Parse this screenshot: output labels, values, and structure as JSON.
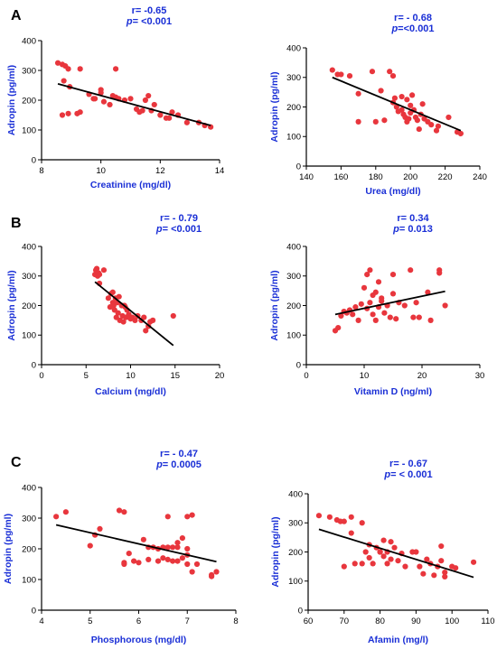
{
  "panel_labels": [
    "A",
    "B",
    "C"
  ],
  "chart_data": [
    {
      "type": "scatter",
      "panel": "A",
      "stat_r": "r= -0.65",
      "stat_p_label": "p",
      "stat_p_value": "= <0.001",
      "xlabel": "Creatinine (mg/dl)",
      "ylabel": "Adropin (pg/ml)",
      "xlim": [
        8,
        14
      ],
      "ylim": [
        0,
        400
      ],
      "xticks": [
        8,
        10,
        12,
        14
      ],
      "yticks": [
        0,
        100,
        200,
        300,
        400
      ],
      "fit_line": [
        [
          8.55,
          255
        ],
        [
          13.7,
          115
        ]
      ],
      "points": [
        [
          8.55,
          325
        ],
        [
          8.7,
          320
        ],
        [
          8.8,
          315
        ],
        [
          8.9,
          305
        ],
        [
          8.75,
          265
        ],
        [
          8.95,
          245
        ],
        [
          8.7,
          150
        ],
        [
          8.9,
          155
        ],
        [
          9.2,
          155
        ],
        [
          9.3,
          160
        ],
        [
          9.3,
          305
        ],
        [
          9.6,
          220
        ],
        [
          9.75,
          205
        ],
        [
          9.8,
          205
        ],
        [
          10.0,
          235
        ],
        [
          10.0,
          225
        ],
        [
          10.1,
          195
        ],
        [
          10.3,
          185
        ],
        [
          10.4,
          215
        ],
        [
          10.5,
          210
        ],
        [
          10.5,
          305
        ],
        [
          10.6,
          205
        ],
        [
          10.8,
          200
        ],
        [
          11.0,
          205
        ],
        [
          11.2,
          170
        ],
        [
          11.3,
          160
        ],
        [
          11.4,
          165
        ],
        [
          11.5,
          200
        ],
        [
          11.6,
          215
        ],
        [
          11.8,
          185
        ],
        [
          12.0,
          150
        ],
        [
          12.2,
          140
        ],
        [
          12.3,
          140
        ],
        [
          12.4,
          160
        ],
        [
          12.6,
          150
        ],
        [
          12.9,
          125
        ],
        [
          13.3,
          125
        ],
        [
          13.5,
          115
        ],
        [
          13.7,
          110
        ],
        [
          11.7,
          165
        ]
      ]
    },
    {
      "type": "scatter",
      "panel": "A",
      "stat_r": "r= - 0.68",
      "stat_p_label": "p",
      "stat_p_value": "=<0.001",
      "xlabel": "Urea (mg/dl)",
      "ylabel": "Adropin (pg/ml)",
      "xlim": [
        140,
        240
      ],
      "ylim": [
        0,
        400
      ],
      "xticks": [
        140,
        160,
        180,
        200,
        220,
        240
      ],
      "yticks": [
        0,
        100,
        200,
        300,
        400
      ],
      "fit_line": [
        [
          155,
          300
        ],
        [
          229,
          120
        ]
      ],
      "points": [
        [
          155,
          325
        ],
        [
          158,
          310
        ],
        [
          160,
          310
        ],
        [
          165,
          305
        ],
        [
          170,
          245
        ],
        [
          170,
          150
        ],
        [
          178,
          320
        ],
        [
          180,
          150
        ],
        [
          183,
          255
        ],
        [
          185,
          155
        ],
        [
          188,
          320
        ],
        [
          190,
          215
        ],
        [
          190,
          305
        ],
        [
          191,
          230
        ],
        [
          192,
          200
        ],
        [
          193,
          185
        ],
        [
          195,
          235
        ],
        [
          195,
          190
        ],
        [
          196,
          175
        ],
        [
          197,
          165
        ],
        [
          198,
          225
        ],
        [
          198,
          150
        ],
        [
          200,
          205
        ],
        [
          200,
          180
        ],
        [
          202,
          190
        ],
        [
          203,
          165
        ],
        [
          204,
          155
        ],
        [
          205,
          125
        ],
        [
          206,
          175
        ],
        [
          207,
          210
        ],
        [
          208,
          160
        ],
        [
          210,
          150
        ],
        [
          212,
          140
        ],
        [
          215,
          120
        ],
        [
          216,
          135
        ],
        [
          222,
          165
        ],
        [
          227,
          115
        ],
        [
          229,
          110
        ],
        [
          199,
          160
        ],
        [
          201,
          240
        ]
      ]
    },
    {
      "type": "scatter",
      "panel": "B",
      "stat_r": "r= - 0.79",
      "stat_p_label": "p",
      "stat_p_value": "= <0.001",
      "xlabel": "Calcium (mg/dl)",
      "ylabel": "Adropin (pg/ml)",
      "xlim": [
        0,
        20
      ],
      "ylim": [
        0,
        400
      ],
      "xticks": [
        0,
        5,
        10,
        15,
        20
      ],
      "yticks": [
        0,
        100,
        200,
        300,
        400
      ],
      "fit_line": [
        [
          6.0,
          280
        ],
        [
          14.8,
          65
        ]
      ],
      "points": [
        [
          6.0,
          305
        ],
        [
          6.1,
          320
        ],
        [
          6.2,
          325
        ],
        [
          6.3,
          300
        ],
        [
          6.4,
          310
        ],
        [
          6.5,
          275
        ],
        [
          6.5,
          305
        ],
        [
          7.0,
          320
        ],
        [
          7.5,
          225
        ],
        [
          7.7,
          195
        ],
        [
          7.8,
          240
        ],
        [
          8.0,
          245
        ],
        [
          8.0,
          210
        ],
        [
          8.1,
          200
        ],
        [
          8.2,
          185
        ],
        [
          8.3,
          225
        ],
        [
          8.4,
          160
        ],
        [
          8.5,
          210
        ],
        [
          8.6,
          175
        ],
        [
          8.7,
          230
        ],
        [
          8.8,
          150
        ],
        [
          9.0,
          200
        ],
        [
          9.1,
          165
        ],
        [
          9.2,
          145
        ],
        [
          9.3,
          200
        ],
        [
          9.5,
          160
        ],
        [
          9.6,
          185
        ],
        [
          9.8,
          170
        ],
        [
          10.0,
          155
        ],
        [
          10.2,
          160
        ],
        [
          10.5,
          150
        ],
        [
          10.8,
          165
        ],
        [
          11.2,
          150
        ],
        [
          11.5,
          160
        ],
        [
          11.7,
          115
        ],
        [
          12.0,
          130
        ],
        [
          12.2,
          145
        ],
        [
          12.5,
          150
        ],
        [
          14.8,
          165
        ],
        [
          9.4,
          195
        ]
      ]
    },
    {
      "type": "scatter",
      "panel": "B",
      "stat_r": "r= 0.34",
      "stat_p_label": "p",
      "stat_p_value": "= 0.013",
      "xlabel": "Vitamin D (ng/ml)",
      "ylabel": "Adropin (pg/ml)",
      "xlim": [
        0,
        30
      ],
      "ylim": [
        0,
        400
      ],
      "xticks": [
        0,
        10,
        20,
        30
      ],
      "yticks": [
        0,
        100,
        200,
        300,
        400
      ],
      "fit_line": [
        [
          5,
          170
        ],
        [
          24,
          248
        ]
      ],
      "points": [
        [
          5,
          115
        ],
        [
          5.5,
          125
        ],
        [
          6,
          165
        ],
        [
          6.5,
          180
        ],
        [
          7,
          175
        ],
        [
          7.5,
          185
        ],
        [
          8,
          170
        ],
        [
          8.5,
          195
        ],
        [
          9,
          150
        ],
        [
          9.5,
          205
        ],
        [
          10,
          260
        ],
        [
          10.5,
          190
        ],
        [
          10.5,
          305
        ],
        [
          11,
          320
        ],
        [
          11,
          210
        ],
        [
          11.5,
          235
        ],
        [
          11.5,
          170
        ],
        [
          12,
          245
        ],
        [
          12,
          150
        ],
        [
          12.5,
          195
        ],
        [
          12.5,
          280
        ],
        [
          13,
          215
        ],
        [
          13,
          225
        ],
        [
          13.5,
          175
        ],
        [
          14,
          200
        ],
        [
          14.5,
          160
        ],
        [
          15,
          305
        ],
        [
          15,
          240
        ],
        [
          15.5,
          155
        ],
        [
          16,
          210
        ],
        [
          17,
          200
        ],
        [
          18,
          320
        ],
        [
          18.5,
          160
        ],
        [
          19,
          210
        ],
        [
          19.5,
          160
        ],
        [
          21,
          245
        ],
        [
          21.5,
          150
        ],
        [
          23,
          320
        ],
        [
          23,
          310
        ],
        [
          24,
          200
        ]
      ]
    },
    {
      "type": "scatter",
      "panel": "C",
      "stat_r": "r= - 0.47",
      "stat_p_label": "p",
      "stat_p_value": "= 0.0005",
      "xlabel": "Phosphorous (mg/dl)",
      "ylabel": "Adropin (pg/ml)",
      "xlim": [
        4,
        8
      ],
      "ylim": [
        0,
        400
      ],
      "xticks": [
        4,
        5,
        6,
        7,
        8
      ],
      "yticks": [
        0,
        100,
        200,
        300,
        400
      ],
      "fit_line": [
        [
          4.3,
          278
        ],
        [
          7.6,
          158
        ]
      ],
      "points": [
        [
          4.3,
          305
        ],
        [
          4.5,
          320
        ],
        [
          5.0,
          210
        ],
        [
          5.1,
          245
        ],
        [
          5.2,
          265
        ],
        [
          5.6,
          325
        ],
        [
          5.7,
          320
        ],
        [
          5.7,
          155
        ],
        [
          5.7,
          150
        ],
        [
          5.8,
          185
        ],
        [
          5.9,
          160
        ],
        [
          6.0,
          155
        ],
        [
          6.1,
          230
        ],
        [
          6.2,
          205
        ],
        [
          6.2,
          165
        ],
        [
          6.3,
          205
        ],
        [
          6.4,
          160
        ],
        [
          6.4,
          200
        ],
        [
          6.5,
          170
        ],
        [
          6.5,
          205
        ],
        [
          6.6,
          165
        ],
        [
          6.6,
          205
        ],
        [
          6.6,
          305
        ],
        [
          6.7,
          160
        ],
        [
          6.7,
          205
        ],
        [
          6.8,
          160
        ],
        [
          6.8,
          205
        ],
        [
          6.8,
          220
        ],
        [
          6.9,
          170
        ],
        [
          6.9,
          235
        ],
        [
          7.0,
          305
        ],
        [
          7.0,
          150
        ],
        [
          7.0,
          200
        ],
        [
          7.1,
          310
        ],
        [
          7.1,
          125
        ],
        [
          7.2,
          150
        ],
        [
          7.5,
          115
        ],
        [
          7.5,
          110
        ],
        [
          7.6,
          125
        ],
        [
          7.0,
          180
        ]
      ]
    },
    {
      "type": "scatter",
      "panel": "C",
      "stat_r": "r= - 0.67",
      "stat_p_label": "p",
      "stat_p_value": "= < 0.001",
      "xlabel": "Afamin (mg/l)",
      "ylabel": "Adropin (pg/ml)",
      "xlim": [
        60,
        110
      ],
      "ylim": [
        0,
        400
      ],
      "xticks": [
        60,
        70,
        80,
        90,
        100,
        110
      ],
      "yticks": [
        0,
        100,
        200,
        300,
        400
      ],
      "fit_line": [
        [
          63,
          278
        ],
        [
          106,
          113
        ]
      ],
      "points": [
        [
          63,
          325
        ],
        [
          66,
          320
        ],
        [
          68,
          310
        ],
        [
          69,
          305
        ],
        [
          70,
          305
        ],
        [
          70,
          150
        ],
        [
          72,
          320
        ],
        [
          72,
          265
        ],
        [
          73,
          160
        ],
        [
          75,
          160
        ],
        [
          75,
          300
        ],
        [
          76,
          200
        ],
        [
          77,
          225
        ],
        [
          77,
          180
        ],
        [
          78,
          160
        ],
        [
          79,
          215
        ],
        [
          80,
          200
        ],
        [
          80,
          200
        ],
        [
          81,
          240
        ],
        [
          81,
          185
        ],
        [
          82,
          200
        ],
        [
          82,
          160
        ],
        [
          83,
          235
        ],
        [
          83,
          175
        ],
        [
          84,
          215
        ],
        [
          85,
          170
        ],
        [
          86,
          195
        ],
        [
          87,
          150
        ],
        [
          89,
          200
        ],
        [
          90,
          200
        ],
        [
          91,
          150
        ],
        [
          93,
          175
        ],
        [
          94,
          160
        ],
        [
          95,
          120
        ],
        [
          96,
          150
        ],
        [
          97,
          220
        ],
        [
          97,
          170
        ],
        [
          98,
          130
        ],
        [
          98,
          115
        ],
        [
          100,
          150
        ],
        [
          101,
          145
        ],
        [
          106,
          165
        ],
        [
          92,
          125
        ]
      ]
    }
  ]
}
